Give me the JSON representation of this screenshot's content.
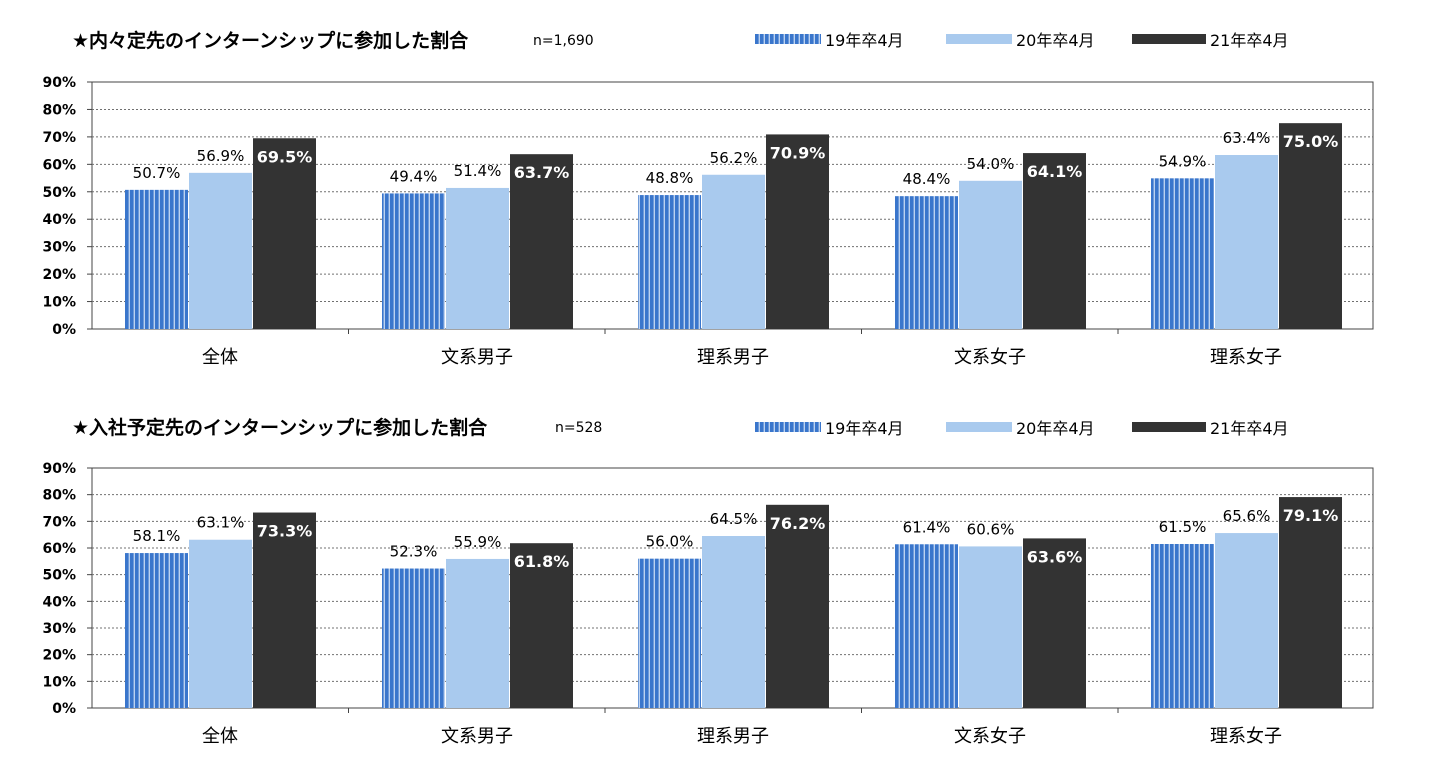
{
  "colors": {
    "s19": "#3a76cc",
    "s19_stripe": "#bcd2f0",
    "s20": "#a9caee",
    "s21": "#333333",
    "grid": "#707070",
    "axis": "#444444",
    "text": "#000000",
    "label_on_dark": "#ffffff"
  },
  "chart_data": [
    {
      "type": "bar",
      "title": "★内々定先のインターンシップに参加した割合",
      "n_label": "n=1,690",
      "categories": [
        "全体",
        "文系男子",
        "理系男子",
        "文系女子",
        "理系女子"
      ],
      "series": [
        {
          "name": "19年卒4月",
          "values": [
            50.7,
            49.4,
            48.8,
            48.4,
            54.9
          ]
        },
        {
          "name": "20年卒4月",
          "values": [
            56.9,
            51.4,
            56.2,
            54.0,
            63.4
          ]
        },
        {
          "name": "21年卒4月",
          "values": [
            69.5,
            63.7,
            70.9,
            64.1,
            75.0
          ]
        }
      ],
      "y_ticks": [
        "0%",
        "10%",
        "20%",
        "30%",
        "40%",
        "50%",
        "60%",
        "70%",
        "80%",
        "90%"
      ],
      "ylim": [
        0,
        90
      ],
      "grid": true,
      "legend_position": "top-right"
    },
    {
      "type": "bar",
      "title": "★入社予定先のインターンシップに参加した割合",
      "n_label": "n=528",
      "categories": [
        "全体",
        "文系男子",
        "理系男子",
        "文系女子",
        "理系女子"
      ],
      "series": [
        {
          "name": "19年卒4月",
          "values": [
            58.1,
            52.3,
            56.0,
            61.4,
            61.5
          ]
        },
        {
          "name": "20年卒4月",
          "values": [
            63.1,
            55.9,
            64.5,
            60.6,
            65.6
          ]
        },
        {
          "name": "21年卒4月",
          "values": [
            73.3,
            61.8,
            76.2,
            63.6,
            79.1
          ]
        }
      ],
      "y_ticks": [
        "0%",
        "10%",
        "20%",
        "30%",
        "40%",
        "50%",
        "60%",
        "70%",
        "80%",
        "90%"
      ],
      "ylim": [
        0,
        90
      ],
      "grid": true,
      "legend_position": "top-right"
    }
  ]
}
